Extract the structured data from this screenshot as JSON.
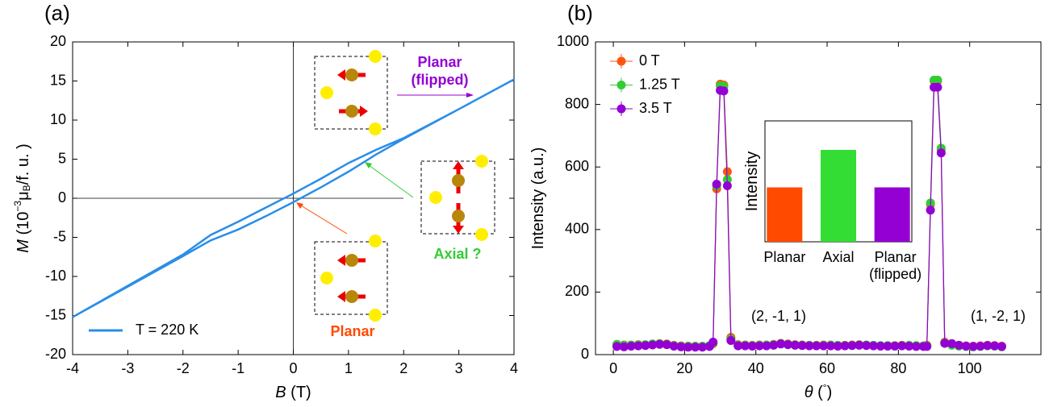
{
  "chart_data": [
    {
      "type": "line",
      "label": "(a)",
      "xlabel": [
        "B",
        " (T)"
      ],
      "ylabel": [
        "M",
        " (10",
        "−3",
        "μ",
        "B",
        "/f. u. )"
      ],
      "xlim": [
        -4,
        4
      ],
      "xticks": [
        -4,
        -3,
        -2,
        -1,
        0,
        1,
        2,
        3,
        4
      ],
      "ylim": [
        -20,
        20
      ],
      "yticks": [
        -20,
        -15,
        -10,
        -5,
        0,
        5,
        10,
        15,
        20
      ],
      "x": [
        -4,
        -3,
        -2,
        -1.5,
        -1,
        -0.5,
        0,
        0.5,
        1,
        1.5,
        2,
        3,
        4,
        4,
        3,
        2,
        1.5,
        1,
        0.5,
        0,
        -0.5,
        -1,
        -1.5,
        -2,
        -3,
        -4
      ],
      "series": [
        {
          "name": "T = 220 K",
          "color": "#2a8ee8",
          "values": [
            -15.2,
            -11.3,
            -7.4,
            -5.4,
            -4.0,
            -2.3,
            -0.5,
            1.4,
            3.4,
            5.6,
            7.6,
            11.4,
            15.2,
            15.2,
            11.4,
            7.7,
            6.2,
            4.5,
            2.5,
            0.6,
            -1.2,
            -3.0,
            -4.7,
            -7.2,
            -11.2,
            -15.2
          ]
        }
      ],
      "legend": "lower left",
      "annotations": [
        {
          "text": [
            "Planar",
            "(flipped)"
          ],
          "color": "#9400d3"
        },
        {
          "text": [
            "Axial ?"
          ],
          "color": "#33cc33"
        },
        {
          "text": [
            "Planar"
          ],
          "color": "#ff4a00"
        }
      ]
    },
    {
      "type": "line",
      "label": "(b)",
      "xlabel": [
        "θ",
        " (",
        "°",
        ")"
      ],
      "ylabel": [
        "Intensity (a.u.)"
      ],
      "xlim": [
        -5,
        120
      ],
      "xticks": [
        0,
        20,
        40,
        60,
        80,
        100
      ],
      "ylim": [
        0,
        1000
      ],
      "yticks": [
        0,
        200,
        400,
        600,
        800,
        1000
      ],
      "x": [
        1,
        3,
        5,
        7,
        9,
        11,
        13,
        15,
        17,
        19,
        21,
        23,
        25,
        27,
        28,
        29,
        30,
        31,
        32,
        33,
        35,
        37,
        39,
        41,
        43,
        45,
        47,
        49,
        51,
        53,
        55,
        57,
        59,
        61,
        63,
        65,
        67,
        69,
        71,
        73,
        75,
        77,
        79,
        81,
        83,
        85,
        87,
        88,
        89,
        90,
        91,
        92,
        93,
        95,
        97,
        99,
        101,
        103,
        105,
        107,
        109
      ],
      "series": [
        {
          "name": "0 T",
          "color": "#ff5511",
          "values": [
            30,
            31,
            30,
            32,
            31,
            33,
            35,
            34,
            30,
            28,
            27,
            27,
            26,
            28,
            35,
            530,
            865,
            862,
            585,
            55,
            32,
            31,
            30,
            31,
            30,
            33,
            36,
            34,
            32,
            31,
            30,
            30,
            31,
            30,
            29,
            30,
            31,
            32,
            30,
            29,
            28,
            28,
            29,
            30,
            29,
            28,
            27,
            30,
            480,
            875,
            875,
            655,
            40,
            35,
            30,
            28,
            27,
            28,
            30,
            29,
            27
          ]
        },
        {
          "name": "1.25 T",
          "color": "#33cc33",
          "values": [
            33,
            30,
            31,
            31,
            32,
            34,
            35,
            33,
            29,
            27,
            27,
            26,
            27,
            29,
            38,
            540,
            860,
            858,
            560,
            50,
            30,
            30,
            29,
            30,
            31,
            32,
            35,
            33,
            31,
            30,
            30,
            29,
            30,
            31,
            30,
            29,
            30,
            31,
            31,
            30,
            29,
            29,
            28,
            29,
            30,
            29,
            28,
            28,
            485,
            878,
            878,
            660,
            38,
            30,
            27,
            26,
            25,
            26,
            28,
            27,
            25
          ]
        },
        {
          "name": "3.5 T",
          "color": "#9400d3",
          "values": [
            26,
            25,
            27,
            28,
            29,
            31,
            33,
            32,
            27,
            25,
            24,
            24,
            24,
            26,
            40,
            545,
            845,
            843,
            540,
            45,
            28,
            28,
            27,
            28,
            28,
            30,
            34,
            32,
            30,
            29,
            28,
            28,
            28,
            28,
            27,
            28,
            29,
            30,
            29,
            28,
            27,
            27,
            27,
            28,
            27,
            26,
            26,
            26,
            462,
            855,
            855,
            645,
            36,
            35,
            30,
            27,
            26,
            27,
            29,
            28,
            26
          ]
        }
      ],
      "legend": "upper left",
      "annotations": [
        {
          "text": [
            "(2, -1, 1)"
          ]
        },
        {
          "text": [
            "(1, -2, 1)"
          ]
        }
      ]
    },
    {
      "type": "bar",
      "ylabel": [
        "Intensity"
      ],
      "categories": [
        [
          "Planar"
        ],
        [
          "Axial"
        ],
        [
          "Planar",
          "(flipped)"
        ]
      ],
      "values": [
        45,
        76,
        45
      ],
      "colors": [
        "#ff4a00",
        "#33dd33",
        "#9400d3"
      ],
      "ylim": [
        0,
        100
      ]
    }
  ]
}
